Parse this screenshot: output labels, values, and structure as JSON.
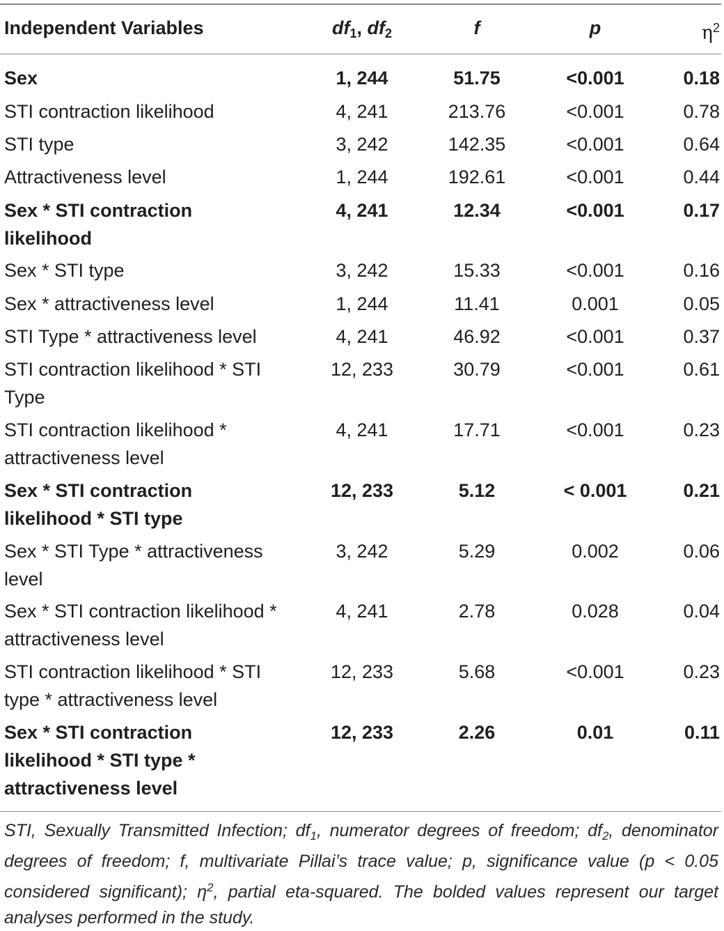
{
  "header": {
    "col_variables": "Independent Variables",
    "col_df_base_a": "df",
    "col_df_sub_a": "1",
    "col_df_sep": ", ",
    "col_df_base_b": "df",
    "col_df_sub_b": "2",
    "col_f": "f",
    "col_p": "p",
    "col_eta": "η",
    "col_eta_sup": "2"
  },
  "rows": [
    {
      "name": "Sex",
      "df": "1, 244",
      "f": "51.75",
      "p": "<0.001",
      "eta": "0.18",
      "bold": true
    },
    {
      "name": "STI contraction likelihood",
      "df": "4, 241",
      "f": "213.76",
      "p": "<0.001",
      "eta": "0.78",
      "bold": false
    },
    {
      "name": "STI type",
      "df": "3, 242",
      "f": "142.35",
      "p": "<0.001",
      "eta": "0.64",
      "bold": false
    },
    {
      "name": "Attractiveness level",
      "df": "1, 244",
      "f": "192.61",
      "p": "<0.001",
      "eta": "0.44",
      "bold": false
    },
    {
      "name": "Sex * STI contraction likelihood",
      "df": "4, 241",
      "f": "12.34",
      "p": "<0.001",
      "eta": "0.17",
      "bold": true
    },
    {
      "name": "Sex * STI type",
      "df": "3, 242",
      "f": "15.33",
      "p": "<0.001",
      "eta": "0.16",
      "bold": false
    },
    {
      "name": "Sex * attractiveness level",
      "df": "1, 244",
      "f": "11.41",
      "p": "0.001",
      "eta": "0.05",
      "bold": false
    },
    {
      "name": "STI Type * attractiveness level",
      "df": "4, 241",
      "f": "46.92",
      "p": "<0.001",
      "eta": "0.37",
      "bold": false
    },
    {
      "name": "STI contraction likelihood * STI Type",
      "df": "12, 233",
      "f": "30.79",
      "p": "<0.001",
      "eta": "0.61",
      "bold": false
    },
    {
      "name": "STI contraction likelihood * attractiveness level",
      "df": "4, 241",
      "f": "17.71",
      "p": "<0.001",
      "eta": "0.23",
      "bold": false
    },
    {
      "name": "Sex * STI contraction likelihood * STI type",
      "df": "12, 233",
      "f": "5.12",
      "p": "< 0.001",
      "eta": "0.21",
      "bold": true
    },
    {
      "name": "Sex * STI Type * attractiveness level",
      "df": "3, 242",
      "f": "5.29",
      "p": "0.002",
      "eta": "0.06",
      "bold": false
    },
    {
      "name": "Sex * STI contraction likelihood * attractiveness level",
      "df": "4, 241",
      "f": "2.78",
      "p": "0.028",
      "eta": "0.04",
      "bold": false
    },
    {
      "name": "STI contraction likelihood * STI type * attractiveness level",
      "df": "12, 233",
      "f": "5.68",
      "p": "<0.001",
      "eta": "0.23",
      "bold": false
    },
    {
      "name": "Sex * STI contraction likelihood * STI type * attractiveness level",
      "df": "12, 233",
      "f": "2.26",
      "p": "0.01",
      "eta": "0.11",
      "bold": true
    }
  ],
  "footnote": {
    "part1": "STI, Sexually Transmitted Infection; df",
    "sub1": "1",
    "part2": ", numerator degrees of freedom; df",
    "sub2": "2",
    "part3": ", denominator degrees of freedom; f, multivariate Pillai’s trace value; p, significance value (p < 0.05 considered significant); η",
    "sup1": "2",
    "part4": ", partial eta-squared. The bolded values represent our target analyses performed in the study."
  }
}
